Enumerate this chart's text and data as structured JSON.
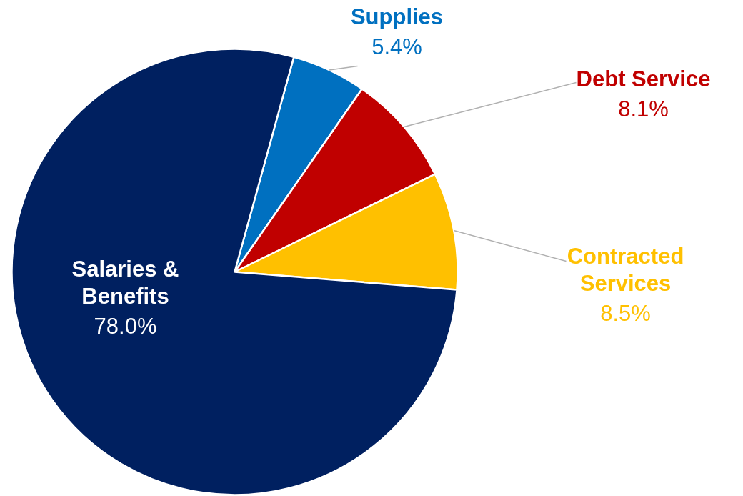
{
  "chart_data": {
    "type": "pie",
    "categories": [
      "Supplies",
      "Debt Service",
      "Contracted Services",
      "Salaries & Benefits"
    ],
    "values": [
      5.4,
      8.1,
      8.5,
      78.0
    ],
    "colors": [
      "#0070c0",
      "#c00000",
      "#ffc000",
      "#002060"
    ],
    "value_labels": [
      "5.4%",
      "8.1%",
      "8.5%",
      "78.0%"
    ]
  }
}
